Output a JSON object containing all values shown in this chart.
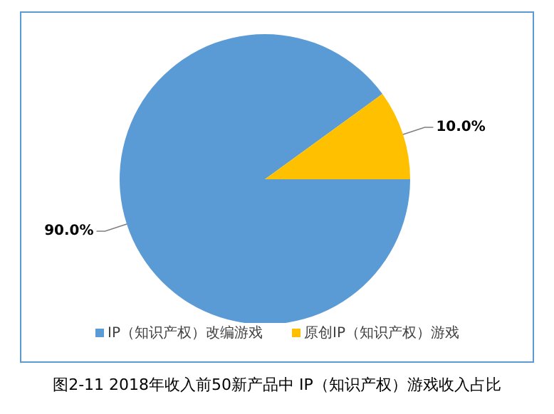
{
  "chart_data": {
    "type": "pie",
    "title": "图2-11 2018年收入前50新产品中 IP（知识产权）游戏收入占比",
    "categories": [
      "IP（知识产权）改编游戏",
      "原创IP（知识产权）游戏"
    ],
    "values": [
      90,
      10
    ],
    "colors": [
      "#5b9bd5",
      "#ffc000"
    ],
    "value_labels": [
      "90.0%",
      "10.0%"
    ],
    "legend": "bottom"
  }
}
